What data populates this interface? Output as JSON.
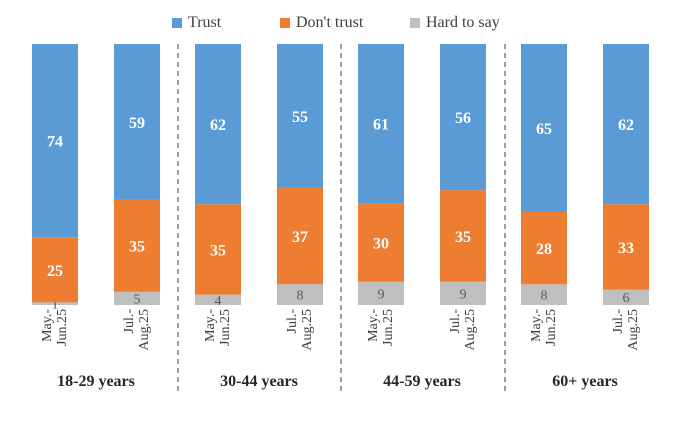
{
  "chart_data": {
    "type": "bar",
    "stacked": true,
    "percent_stacked": true,
    "legend_position": "top",
    "colors": {
      "Trust": "#5b9bd5",
      "Don't trust": "#ed7d31",
      "Hard to say": "#bfbfbf"
    },
    "series_names": [
      "Trust",
      "Don't trust",
      "Hard to say"
    ],
    "groups": [
      {
        "label": "18-29 years",
        "bars": [
          {
            "category": "May.-Jun.25",
            "values": {
              "Trust": 74,
              "Don't trust": 25,
              "Hard to say": 1
            }
          },
          {
            "category": "Jul.-Aug.25",
            "values": {
              "Trust": 59,
              "Don't trust": 35,
              "Hard to say": 5
            }
          }
        ]
      },
      {
        "label": "30-44 years",
        "bars": [
          {
            "category": "May.-Jun.25",
            "values": {
              "Trust": 62,
              "Don't trust": 35,
              "Hard to say": 4
            }
          },
          {
            "category": "Jul.-Aug.25",
            "values": {
              "Trust": 55,
              "Don't trust": 37,
              "Hard to say": 8
            }
          }
        ]
      },
      {
        "label": "44-59 years",
        "bars": [
          {
            "category": "May.-Jun.25",
            "values": {
              "Trust": 61,
              "Don't trust": 30,
              "Hard to say": 9
            }
          },
          {
            "category": "Jul.-Aug.25",
            "values": {
              "Trust": 56,
              "Don't trust": 35,
              "Hard to say": 9
            }
          }
        ]
      },
      {
        "label": "60+ years",
        "bars": [
          {
            "category": "May.-Jun.25",
            "values": {
              "Trust": 65,
              "Don't trust": 28,
              "Hard to say": 8
            }
          },
          {
            "category": "Jul.-Aug.25",
            "values": {
              "Trust": 62,
              "Don't trust": 33,
              "Hard to say": 6
            }
          }
        ]
      }
    ]
  }
}
